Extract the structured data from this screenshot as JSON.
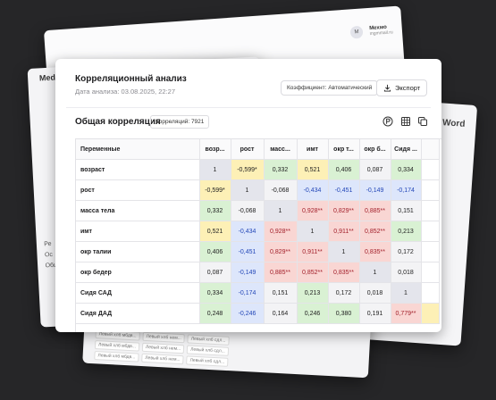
{
  "background": {
    "user": {
      "initial": "M",
      "name": "Мехмо",
      "email": "mgmmail.ru"
    },
    "app_name": "Med",
    "side_label_lines": [
      "Ре",
      "Ос",
      "Общ"
    ],
    "word_label": "Word",
    "bottom_rows": [
      [
        "Левый хлб мбдв...",
        "Левый хлб нем...",
        "Левый хлб сдл..."
      ],
      [
        "Левый хлб мбдв...",
        "Левый хлб нем...",
        "Левый хлб сдл..."
      ],
      [
        "Левый хлб мбдв...",
        "Левый хлб нем...",
        "Левый хлб сдл..."
      ]
    ]
  },
  "card": {
    "title": "Корреляционный анализ",
    "date": "Дата анализа: 03.08.2025, 22:27",
    "coefficient_button": "Коэффициент: Автоматический",
    "export_button": "Экспорт",
    "section_title": "Общая корреляция",
    "correlation_count": "Корреляций: 7921",
    "tool_icons": [
      "pearson-p-icon",
      "grid-icon",
      "copy-icon"
    ]
  },
  "table": {
    "variables_header": "Переменные",
    "columns": [
      "возр...",
      "рост",
      "масс...",
      "имт",
      "окр т...",
      "окр б...",
      "Сидя ..."
    ],
    "rows": [
      {
        "label": "возраст",
        "cells": [
          "1",
          "-0,599*",
          "0,332",
          "0,521",
          "0,406",
          "0,087",
          "0,334"
        ]
      },
      {
        "label": "рост",
        "cells": [
          "-0,599*",
          "1",
          "-0,068",
          "-0,434",
          "-0,451",
          "-0,149",
          "-0,174"
        ]
      },
      {
        "label": "масса тела",
        "cells": [
          "0,332",
          "-0,068",
          "1",
          "0,928**",
          "0,829**",
          "0,885**",
          "0,151"
        ]
      },
      {
        "label": "имт",
        "cells": [
          "0,521",
          "-0,434",
          "0,928**",
          "1",
          "0,911**",
          "0,852**",
          "0,213"
        ]
      },
      {
        "label": "окр талии",
        "cells": [
          "0,406",
          "-0,451",
          "0,829**",
          "0,911**",
          "1",
          "0,835**",
          "0,172"
        ]
      },
      {
        "label": "окр бедер",
        "cells": [
          "0,087",
          "-0,149",
          "0,885**",
          "0,852**",
          "0,835**",
          "1",
          "0,018"
        ]
      },
      {
        "label": "Сидя САД",
        "cells": [
          "0,334",
          "-0,174",
          "0,151",
          "0,213",
          "0,172",
          "0,018",
          "1"
        ]
      },
      {
        "label": "Сидя ДАД",
        "cells": [
          "0,248",
          "-0,246",
          "0,164",
          "0,246",
          "0,380",
          "0,191",
          "0,779**"
        ]
      }
    ],
    "colors": {
      "diagonal": "#e4e5ec",
      "strong_positive": "#f9d6d3",
      "strong_positive_text": "#a3202b",
      "moderate_positive": "#fdf0b6",
      "weak_positive": "#d9f1d3",
      "weak_negative": "#dde6fb",
      "weak_negative_text": "#2448b8",
      "moderate_negative": "#fdf0b6",
      "near_zero": "#f3f3f5"
    }
  }
}
